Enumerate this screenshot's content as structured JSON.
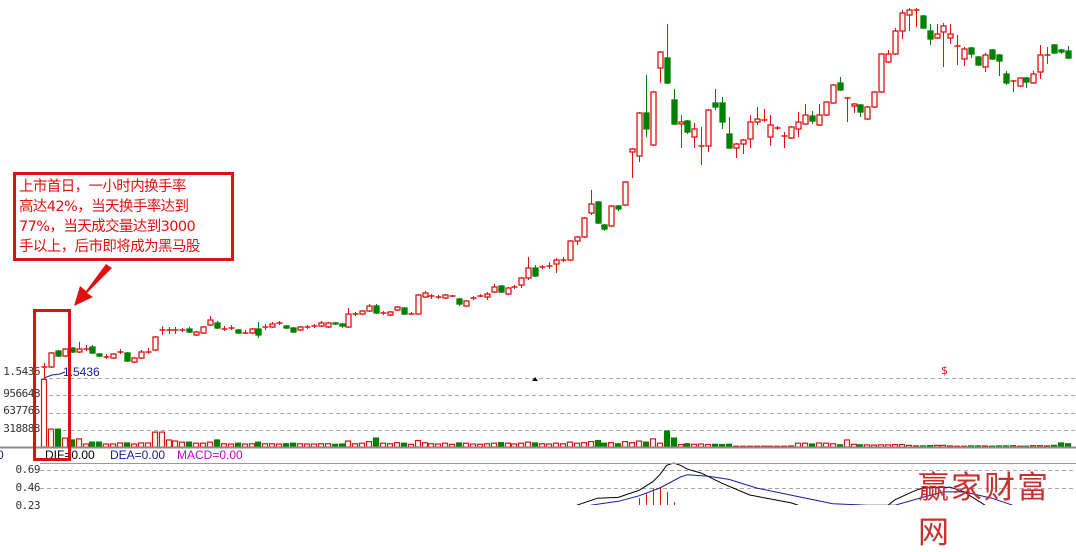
{
  "colors": {
    "up": "#e01010",
    "down": "#008000",
    "grid": "#a8a8a8",
    "dif": "#000000",
    "dea": "#1a1a9a",
    "macd": "#cc00cc",
    "annotation": "#e01010"
  },
  "annotation": {
    "lines": [
      "上市首日，一小时内换手率",
      "高达42%，当天换手率达到",
      "77%，当天成交量达到3000",
      "手以上，后市即将成为黑马股"
    ],
    "arrow_icon": "arrow-down-left"
  },
  "volume_axis": {
    "labels": [
      "1.5436",
      "956648",
      "637765",
      "318883"
    ]
  },
  "ma_label": "1.5436",
  "marker_text": "$",
  "macd_legend": {
    "left_cut": "0",
    "dif": "DIF=0.00",
    "dea": "DEA=0.00",
    "macd": "MACD=0.00"
  },
  "macd_axis": {
    "labels": [
      "0.69",
      "0.46",
      "0.23"
    ]
  },
  "watermark": "赢家财富网",
  "chart_data": [
    {
      "type": "candlestick",
      "title": "",
      "ylim": [
        1.8,
        39
      ],
      "grid": false,
      "candles_ohlc": [
        [
          2.3,
          2.7,
          1.3,
          2.3
        ],
        [
          2.3,
          3.8,
          2.2,
          3.7
        ],
        [
          3.9,
          4.0,
          3.3,
          3.4
        ],
        [
          3.4,
          4.2,
          3.3,
          4.1
        ],
        [
          4.2,
          4.3,
          3.7,
          3.8
        ],
        [
          3.8,
          4.8,
          3.7,
          4.1
        ],
        [
          4.1,
          4.5,
          3.9,
          4.1
        ],
        [
          4.3,
          4.5,
          3.6,
          3.7
        ],
        [
          3.6,
          3.7,
          3.3,
          3.4
        ],
        [
          3.3,
          3.6,
          3.1,
          3.3
        ],
        [
          3.2,
          3.7,
          3.1,
          3.6
        ],
        [
          3.8,
          4.1,
          3.6,
          3.8
        ],
        [
          3.7,
          3.8,
          2.8,
          2.9
        ],
        [
          2.8,
          3.3,
          2.7,
          3.2
        ],
        [
          3.2,
          4.0,
          3.1,
          3.8
        ],
        [
          3.8,
          4.2,
          3.6,
          3.8
        ],
        [
          4.0,
          5.4,
          3.9,
          5.3
        ],
        [
          6.0,
          6.4,
          5.5,
          6.0
        ],
        [
          6.0,
          6.3,
          5.6,
          6.0
        ],
        [
          6.0,
          6.3,
          5.6,
          6.0
        ],
        [
          6.0,
          6.2,
          5.8,
          6.0
        ],
        [
          6.1,
          6.3,
          5.7,
          5.8
        ],
        [
          5.5,
          5.9,
          5.4,
          5.8
        ],
        [
          5.7,
          6.4,
          5.6,
          6.3
        ],
        [
          6.5,
          7.4,
          6.4,
          7.0
        ],
        [
          6.7,
          6.9,
          6.1,
          6.2
        ],
        [
          6.1,
          6.4,
          5.9,
          6.1
        ],
        [
          6.2,
          6.5,
          6.0,
          6.2
        ],
        [
          6.0,
          6.1,
          5.6,
          5.7
        ],
        [
          5.7,
          6.0,
          5.6,
          5.7
        ],
        [
          5.7,
          6.2,
          5.6,
          6.1
        ],
        [
          6.1,
          6.8,
          5.2,
          5.5
        ],
        [
          6.3,
          6.6,
          6.0,
          6.3
        ],
        [
          6.3,
          6.8,
          6.2,
          6.6
        ],
        [
          6.7,
          6.9,
          6.5,
          6.7
        ],
        [
          6.4,
          6.5,
          6.1,
          6.2
        ],
        [
          6.2,
          6.3,
          5.7,
          5.8
        ],
        [
          6.0,
          6.4,
          5.9,
          6.3
        ],
        [
          6.3,
          6.5,
          6.1,
          6.3
        ],
        [
          6.4,
          6.6,
          6.2,
          6.4
        ],
        [
          6.4,
          6.9,
          6.3,
          6.7
        ],
        [
          6.3,
          6.8,
          6.2,
          6.7
        ],
        [
          6.7,
          6.8,
          6.5,
          6.6
        ],
        [
          6.6,
          6.7,
          6.2,
          6.4
        ],
        [
          6.3,
          8.2,
          6.2,
          7.6
        ],
        [
          7.6,
          7.8,
          7.4,
          7.6
        ],
        [
          7.6,
          8.0,
          7.5,
          7.9
        ],
        [
          7.9,
          8.6,
          7.8,
          8.4
        ],
        [
          8.4,
          8.6,
          7.6,
          7.7
        ],
        [
          7.7,
          7.9,
          7.5,
          7.7
        ],
        [
          7.5,
          7.9,
          7.4,
          7.8
        ],
        [
          8.0,
          8.4,
          7.9,
          8.3
        ],
        [
          8.2,
          8.3,
          7.5,
          7.6
        ],
        [
          7.6,
          7.8,
          7.6,
          7.6
        ],
        [
          7.6,
          9.6,
          7.5,
          9.5
        ],
        [
          9.3,
          9.9,
          9.2,
          9.7
        ],
        [
          9.4,
          9.6,
          9.1,
          9.4
        ],
        [
          9.3,
          9.5,
          9.1,
          9.3
        ],
        [
          9.2,
          9.6,
          9.1,
          9.5
        ],
        [
          9.4,
          9.5,
          9.3,
          9.4
        ],
        [
          9.1,
          9.2,
          8.4,
          8.6
        ],
        [
          8.4,
          9.0,
          8.3,
          8.9
        ],
        [
          9.2,
          9.4,
          9.0,
          9.2
        ],
        [
          9.4,
          9.6,
          9.3,
          9.4
        ],
        [
          9.3,
          9.8,
          9.0,
          9.6
        ],
        [
          9.8,
          10.6,
          9.7,
          10.3
        ],
        [
          10.4,
          10.5,
          9.7,
          9.8
        ],
        [
          9.6,
          10.3,
          9.5,
          10.2
        ],
        [
          10.3,
          10.5,
          10.1,
          10.3
        ],
        [
          10.5,
          11.3,
          10.2,
          11.2
        ],
        [
          11.2,
          13.3,
          11.0,
          12.2
        ],
        [
          12.2,
          12.5,
          11.3,
          11.4
        ],
        [
          12.3,
          12.5,
          12.1,
          12.3
        ],
        [
          12.4,
          12.8,
          12.1,
          12.4
        ],
        [
          12.6,
          13.2,
          11.7,
          13.0
        ],
        [
          13.0,
          13.3,
          12.8,
          13.0
        ],
        [
          13.0,
          15.0,
          12.9,
          14.9
        ],
        [
          14.9,
          15.4,
          14.5,
          15.3
        ],
        [
          15.3,
          17.3,
          15.2,
          17.2
        ],
        [
          17.7,
          20.0,
          17.5,
          18.6
        ],
        [
          18.8,
          18.9,
          16.6,
          16.7
        ],
        [
          16.5,
          16.6,
          15.9,
          16.1
        ],
        [
          16.4,
          18.5,
          16.3,
          18.4
        ],
        [
          18.4,
          18.5,
          17.9,
          18.1
        ],
        [
          18.5,
          20.9,
          18.4,
          20.8
        ],
        [
          23.8,
          24.2,
          21.2,
          24.1
        ],
        [
          23.4,
          27.8,
          22.8,
          27.7
        ],
        [
          27.7,
          31.5,
          25.3,
          26.1
        ],
        [
          24.5,
          29.9,
          24.4,
          29.8
        ],
        [
          32.2,
          33.9,
          30.7,
          33.8
        ],
        [
          33.2,
          36.6,
          30.6,
          30.7
        ],
        [
          29.0,
          30.1,
          26.5,
          26.6
        ],
        [
          26.6,
          27.5,
          24.2,
          26.8
        ],
        [
          26.9,
          27.0,
          25.6,
          25.8
        ],
        [
          25.3,
          26.7,
          24.2,
          26.1
        ],
        [
          24.4,
          26.3,
          22.5,
          24.4
        ],
        [
          24.4,
          28.1,
          23.8,
          28.0
        ],
        [
          28.7,
          30.1,
          28.0,
          28.3
        ],
        [
          28.7,
          29.3,
          26.1,
          26.8
        ],
        [
          25.6,
          27.3,
          24.1,
          24.2
        ],
        [
          24.2,
          24.7,
          23.2,
          24.6
        ],
        [
          24.6,
          25.1,
          23.6,
          25.0
        ],
        [
          25.1,
          27.5,
          24.2,
          26.8
        ],
        [
          26.8,
          28.3,
          26.5,
          27.1
        ],
        [
          27.0,
          28.1,
          26.8,
          27.0
        ],
        [
          25.3,
          27.5,
          24.4,
          26.5
        ],
        [
          26.2,
          26.4,
          26.0,
          26.2
        ],
        [
          25.4,
          25.8,
          24.2,
          25.4
        ],
        [
          25.2,
          26.4,
          25.1,
          26.3
        ],
        [
          26.1,
          27.8,
          25.3,
          26.8
        ],
        [
          26.6,
          28.6,
          26.5,
          27.5
        ],
        [
          27.4,
          27.9,
          26.6,
          26.9
        ],
        [
          26.5,
          28.6,
          26.4,
          27.5
        ],
        [
          27.5,
          28.9,
          27.4,
          28.8
        ],
        [
          28.7,
          30.6,
          28.6,
          30.5
        ],
        [
          30.7,
          31.3,
          29.9,
          30.0
        ],
        [
          29.2,
          29.3,
          26.8,
          29.2
        ],
        [
          28.4,
          28.7,
          27.7,
          28.6
        ],
        [
          28.5,
          28.6,
          27.3,
          27.8
        ],
        [
          27.1,
          28.4,
          27.0,
          28.3
        ],
        [
          28.3,
          29.9,
          28.2,
          29.8
        ],
        [
          29.8,
          33.7,
          29.7,
          33.6
        ],
        [
          32.8,
          34.0,
          32.7,
          33.6
        ],
        [
          33.6,
          36.2,
          33.5,
          35.9
        ],
        [
          35.9,
          38.0,
          35.1,
          37.7
        ],
        [
          37.5,
          38.2,
          35.9,
          38.0
        ],
        [
          38.0,
          38.2,
          36.3,
          38.0
        ],
        [
          37.4,
          37.5,
          36.1,
          36.2
        ],
        [
          35.9,
          36.6,
          34.5,
          35.1
        ],
        [
          35.2,
          36.6,
          35.1,
          35.6
        ],
        [
          35.8,
          36.7,
          32.3,
          36.4
        ],
        [
          35.2,
          36.6,
          34.6,
          35.6
        ],
        [
          34.4,
          35.5,
          32.5,
          34.4
        ],
        [
          33.1,
          34.3,
          32.4,
          34.1
        ],
        [
          34.2,
          34.3,
          33.2,
          33.6
        ],
        [
          33.3,
          33.4,
          32.4,
          32.5
        ],
        [
          32.3,
          33.7,
          31.8,
          33.5
        ],
        [
          34.0,
          34.1,
          33.0,
          33.1
        ],
        [
          33.5,
          33.6,
          31.4,
          32.9
        ],
        [
          31.6,
          31.9,
          30.5,
          30.7
        ],
        [
          30.9,
          31.0,
          29.8,
          30.9
        ],
        [
          30.4,
          31.3,
          30.3,
          31.2
        ],
        [
          31.2,
          31.3,
          30.2,
          30.8
        ],
        [
          30.7,
          31.9,
          30.6,
          31.6
        ],
        [
          31.8,
          34.5,
          31.1,
          33.5
        ],
        [
          33.5,
          34.3,
          32.6,
          33.5
        ],
        [
          34.5,
          34.6,
          33.6,
          33.7
        ],
        [
          34.0,
          34.1,
          33.6,
          33.8
        ],
        [
          33.9,
          34.4,
          33.1,
          33.2
        ]
      ]
    },
    {
      "type": "bar",
      "title": "",
      "ylim": [
        0,
        1275530
      ],
      "yticks": [
        318883,
        637765,
        956648
      ],
      "grid": true,
      "values": [
        1250000,
        330000,
        330000,
        165000,
        130000,
        150000,
        55000,
        90000,
        90000,
        55000,
        55000,
        75000,
        75000,
        55000,
        75000,
        75000,
        275000,
        275000,
        130000,
        110000,
        90000,
        90000,
        70000,
        70000,
        90000,
        130000,
        60000,
        55000,
        70000,
        55000,
        60000,
        90000,
        60000,
        60000,
        55000,
        60000,
        70000,
        60000,
        55000,
        55000,
        60000,
        60000,
        50000,
        55000,
        110000,
        60000,
        70000,
        100000,
        165000,
        70000,
        60000,
        80000,
        70000,
        50000,
        120000,
        80000,
        60000,
        55000,
        70000,
        50000,
        75000,
        70000,
        55000,
        50000,
        60000,
        70000,
        80000,
        70000,
        55000,
        70000,
        90000,
        75000,
        60000,
        55000,
        70000,
        60000,
        90000,
        70000,
        80000,
        100000,
        120000,
        70000,
        80000,
        60000,
        100000,
        80000,
        110000,
        90000,
        150000,
        70000,
        295000,
        165000,
        45000,
        60000,
        50000,
        55000,
        45000,
        50000,
        45000,
        50000,
        15000,
        15000,
        15000,
        15000,
        15000,
        15000,
        15000,
        15000,
        20000,
        70000,
        70000,
        55000,
        75000,
        70000,
        60000,
        40000,
        130000,
        50000,
        40000,
        40000,
        35000,
        40000,
        40000,
        45000,
        45000,
        30000,
        20000,
        20000,
        25000,
        30000,
        30000,
        20000,
        15000,
        15000,
        20000,
        20000,
        20000,
        15000,
        20000,
        20000,
        25000,
        15000,
        15000,
        25000,
        25000,
        20000,
        30000,
        75000,
        60000
      ]
    },
    {
      "type": "line",
      "title": "",
      "ylim": [
        0.23,
        0.69
      ],
      "yticks": [
        0.69,
        0.46,
        0.23
      ],
      "grid": true,
      "series": [
        {
          "name": "DIF",
          "points": [
            [
              77,
              0.24
            ],
            [
              80,
              0.33
            ],
            [
              83,
              0.34
            ],
            [
              86,
              0.43
            ],
            [
              88,
              0.54
            ],
            [
              89,
              0.63
            ],
            [
              90,
              0.75
            ],
            [
              91,
              0.78
            ],
            [
              92,
              0.75
            ],
            [
              93,
              0.7
            ],
            [
              95,
              0.65
            ],
            [
              98,
              0.52
            ],
            [
              102,
              0.37
            ],
            [
              108,
              0.27
            ],
            [
              109,
              0.24
            ]
          ]
        },
        {
          "name": "DIF",
          "points": [
            [
              122,
              0.24
            ],
            [
              123,
              0.31
            ],
            [
              126,
              0.43
            ],
            [
              127,
              0.46
            ],
            [
              131,
              0.47
            ],
            [
              133,
              0.41
            ],
            [
              136,
              0.24
            ]
          ]
        },
        {
          "name": "DEA",
          "points": [
            [
              79,
              0.24
            ],
            [
              83,
              0.29
            ],
            [
              86,
              0.36
            ],
            [
              89,
              0.46
            ],
            [
              92,
              0.6
            ],
            [
              93,
              0.63
            ],
            [
              96,
              0.61
            ],
            [
              99,
              0.57
            ],
            [
              103,
              0.46
            ],
            [
              109,
              0.35
            ],
            [
              114,
              0.26
            ],
            [
              119,
              0.24
            ],
            [
              123,
              0.24
            ]
          ]
        },
        {
          "name": "DEA",
          "points": [
            [
              123,
              0.24
            ],
            [
              127,
              0.34
            ],
            [
              130,
              0.41
            ],
            [
              133,
              0.41
            ],
            [
              137,
              0.33
            ],
            [
              140,
              0.24
            ]
          ]
        }
      ],
      "macd_bars": [
        [
          86,
          0.33
        ],
        [
          87,
          0.39
        ],
        [
          88,
          0.46
        ],
        [
          89,
          0.47
        ],
        [
          90,
          0.41
        ],
        [
          91,
          0.28
        ]
      ]
    }
  ]
}
